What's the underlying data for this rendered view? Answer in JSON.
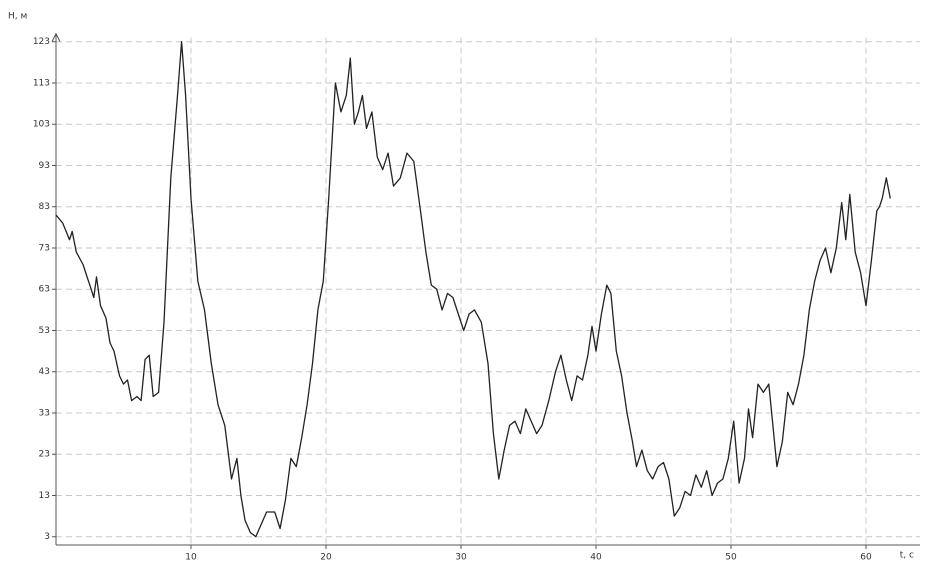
{
  "chart_data": {
    "type": "line",
    "y_label": "H, м",
    "x_label": "t, с",
    "x": [
      0,
      0.5,
      1,
      1.2,
      1.5,
      2,
      2.5,
      2.8,
      3,
      3.3,
      3.7,
      4,
      4.3,
      4.7,
      5,
      5.3,
      5.6,
      6,
      6.3,
      6.6,
      6.9,
      7.2,
      7.6,
      8,
      8.5,
      9,
      9.3,
      9.6,
      10,
      10.5,
      11,
      11.5,
      12,
      12.5,
      13,
      13.4,
      13.7,
      14,
      14.4,
      14.8,
      15.2,
      15.6,
      16.2,
      16.6,
      17,
      17.4,
      17.8,
      18.2,
      18.6,
      19,
      19.4,
      19.8,
      20.2,
      20.7,
      21.1,
      21.5,
      21.8,
      22.1,
      22.4,
      22.7,
      23,
      23.4,
      23.8,
      24.2,
      24.6,
      25,
      25.5,
      26,
      26.5,
      27,
      27.4,
      27.8,
      28.2,
      28.6,
      29,
      29.4,
      29.8,
      30.2,
      30.6,
      31,
      31.5,
      32,
      32.4,
      32.8,
      33.2,
      33.6,
      34,
      34.4,
      34.8,
      35.2,
      35.6,
      36,
      36.5,
      37,
      37.4,
      37.8,
      38.2,
      38.6,
      39,
      39.4,
      39.7,
      40,
      40.4,
      40.8,
      41.1,
      41.5,
      41.9,
      42.3,
      42.7,
      43,
      43.4,
      43.8,
      44.2,
      44.6,
      45,
      45.4,
      45.8,
      46.2,
      46.6,
      47,
      47.4,
      47.8,
      48.2,
      48.6,
      49,
      49.4,
      49.8,
      50.2,
      50.6,
      51,
      51.3,
      51.6,
      52,
      52.4,
      52.8,
      53.1,
      53.4,
      53.8,
      54.2,
      54.6,
      55,
      55.4,
      55.8,
      56.2,
      56.6,
      57,
      57.4,
      57.8,
      58.2,
      58.5,
      58.8,
      59.2,
      59.6,
      60,
      60.4,
      60.8,
      61,
      61.2,
      61.5,
      61.8
    ],
    "values": [
      81,
      79,
      75,
      77,
      72,
      69,
      64,
      61,
      66,
      59,
      56,
      50,
      48,
      42,
      40,
      41,
      36,
      37,
      36,
      46,
      47,
      37,
      38,
      55,
      90,
      110,
      123,
      110,
      85,
      65,
      58,
      45,
      35,
      30,
      17,
      22,
      13,
      7,
      4,
      3,
      6,
      9,
      9,
      5,
      12,
      22,
      20,
      27,
      35,
      45,
      58,
      65,
      85,
      113,
      106,
      110,
      119,
      103,
      106,
      110,
      102,
      106,
      95,
      92,
      96,
      88,
      90,
      96,
      94,
      82,
      72,
      64,
      63,
      58,
      62,
      61,
      57,
      53,
      57,
      58,
      55,
      45,
      28,
      17,
      24,
      30,
      31,
      28,
      34,
      31,
      28,
      30,
      36,
      43,
      47,
      41,
      36,
      42,
      41,
      47,
      54,
      48,
      57,
      64,
      62,
      48,
      42,
      33,
      26,
      20,
      24,
      19,
      17,
      20,
      21,
      17,
      8,
      10,
      14,
      13,
      18,
      15,
      19,
      13,
      16,
      17,
      22,
      31,
      16,
      22,
      34,
      27,
      40,
      38,
      40,
      30,
      20,
      26,
      38,
      35,
      40,
      47,
      58,
      65,
      70,
      73,
      67,
      73,
      84,
      75,
      86,
      72,
      67,
      59,
      70,
      82,
      83,
      85,
      90,
      85
    ],
    "color": "#222222",
    "xlim": [
      0,
      64
    ],
    "xticks": [
      10,
      20,
      30,
      40,
      50,
      60
    ],
    "ylim": [
      1,
      124
    ],
    "yticks": [
      3,
      13,
      23,
      33,
      43,
      53,
      63,
      73,
      83,
      93,
      103,
      113,
      123
    ],
    "grid": true
  }
}
